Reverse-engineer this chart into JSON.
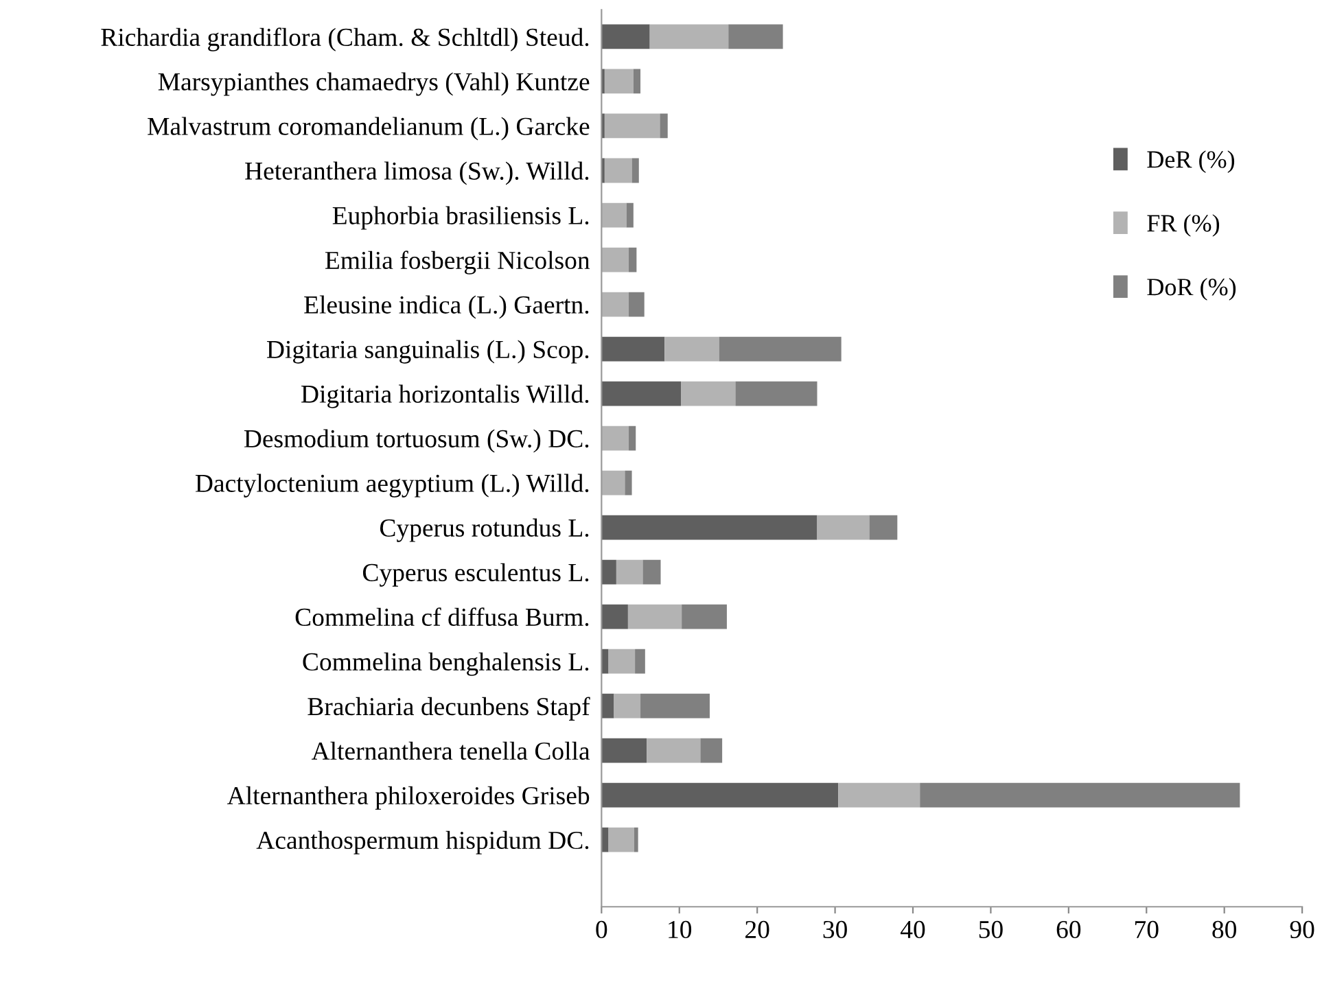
{
  "chart_data": {
    "type": "bar",
    "orientation": "horizontal",
    "stacked": true,
    "categories": [
      "Richardia grandiflora (Cham. & Schltdl) Steud.",
      "Marsypianthes chamaedrys (Vahl) Kuntze",
      "Malvastrum coromandelianum (L.) Garcke",
      "Heteranthera limosa (Sw.). Willd.",
      "Euphorbia brasiliensis L.",
      "Emilia fosbergii Nicolson",
      "Eleusine indica (L.) Gaertn.",
      "Digitaria sanguinalis (L.) Scop.",
      "Digitaria horizontalis Willd.",
      "Desmodium tortuosum (Sw.) DC.",
      "Dactyloctenium aegyptium (L.) Willd.",
      "Cyperus rotundus L.",
      "Cyperus esculentus L.",
      "Commelina cf diffusa Burm.",
      "Commelina benghalensis L.",
      "Brachiaria decunbens Stapf",
      "Alternanthera tenella Colla",
      "Alternanthera philoxeroides Griseb",
      "Acanthospermum hispidum DC."
    ],
    "series": [
      {
        "name": "DeR (%)",
        "color": "#5f5f5f",
        "values": [
          6.2,
          0.4,
          0.4,
          0.4,
          null,
          null,
          null,
          8.1,
          10.2,
          null,
          null,
          27.7,
          1.9,
          3.4,
          0.9,
          1.6,
          5.8,
          30.4,
          0.9
        ]
      },
      {
        "name": "FR (%)",
        "color": "#b3b3b3",
        "values": [
          10.1,
          3.7,
          7.1,
          3.5,
          3.2,
          3.5,
          3.5,
          7.0,
          7.0,
          3.5,
          3.0,
          6.7,
          3.4,
          6.9,
          3.4,
          3.4,
          6.9,
          10.5,
          3.3
        ]
      },
      {
        "name": "DoR (%)",
        "color": "#808080",
        "values": [
          7.0,
          0.9,
          1.0,
          0.9,
          0.9,
          1.0,
          2.0,
          15.7,
          10.5,
          0.9,
          0.9,
          3.6,
          2.3,
          5.8,
          1.3,
          8.9,
          2.8,
          41.1,
          0.5
        ]
      }
    ],
    "xlim": [
      0,
      90
    ],
    "xticks": [
      0,
      10,
      20,
      30,
      40,
      50,
      60,
      70,
      80,
      90
    ],
    "legend": "right",
    "grid": false
  }
}
